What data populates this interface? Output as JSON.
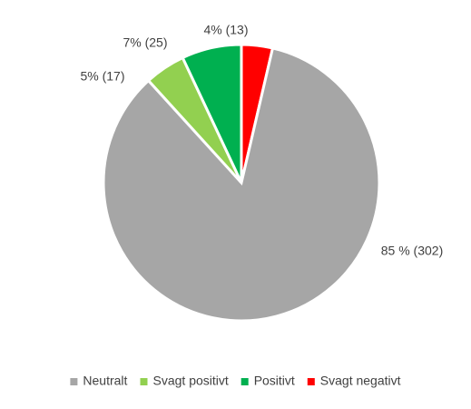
{
  "chart_data": {
    "type": "pie",
    "title": "",
    "start_angle_deg": 0,
    "direction": "clockwise",
    "legend_position": "bottom",
    "categories": [
      "Neutralt",
      "Svagt positivt",
      "Positivt",
      "Svagt negativt"
    ],
    "values": [
      302,
      17,
      25,
      13
    ],
    "colors": [
      "#a6a6a6",
      "#92d050",
      "#00b050",
      "#ff0000"
    ],
    "slice_order": [
      "Svagt negativt",
      "Neutralt",
      "Svagt positivt",
      "Positivt"
    ],
    "data_labels": {
      "Neutralt": "85 % (302)",
      "Svagt positivt": "5% (17)",
      "Positivt": "7% (25)",
      "Svagt negativt": "4% (13)"
    }
  }
}
